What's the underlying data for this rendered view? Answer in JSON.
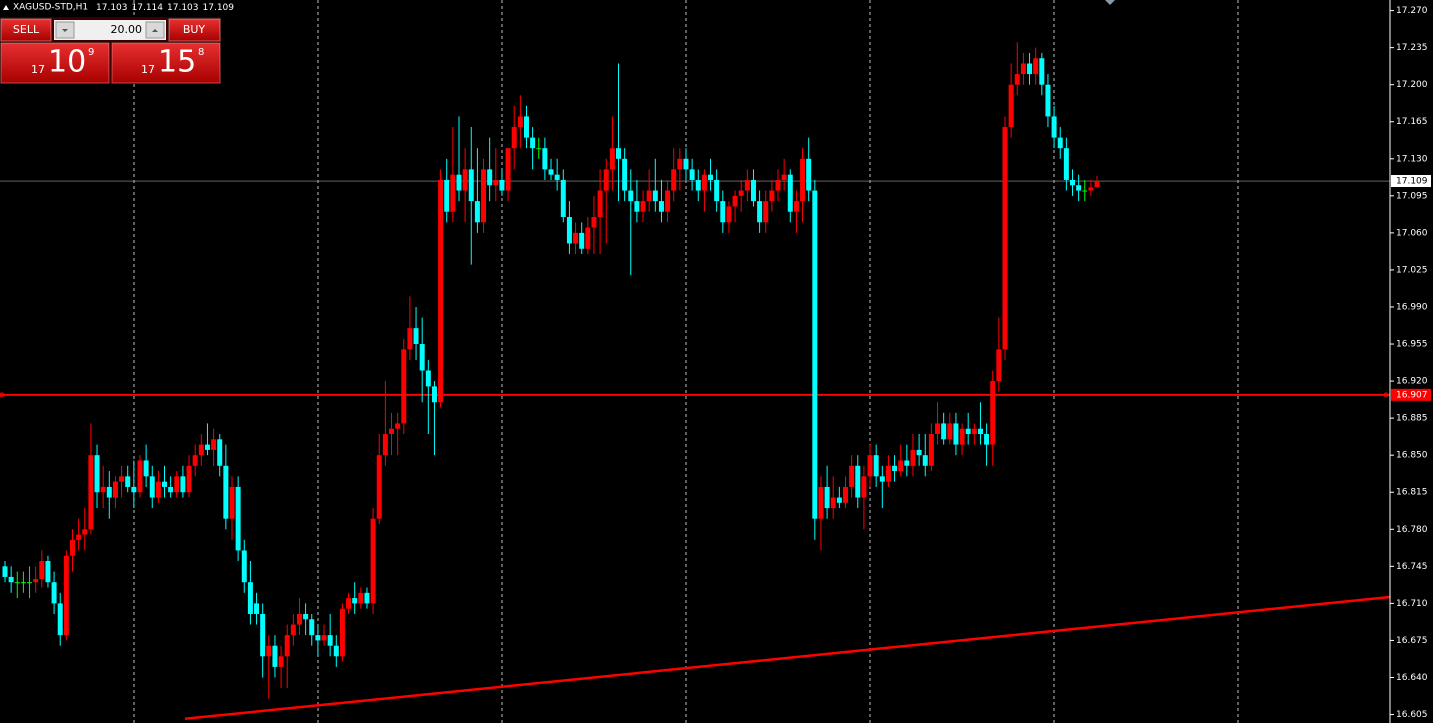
{
  "header": {
    "symbol": "XAGUSD-STD,H1"
  },
  "trade_panel": {
    "sell_label": "SELL",
    "buy_label": "BUY",
    "volume": "20.00",
    "sell_price": {
      "prefix": "17",
      "main": "10",
      "point": "9"
    },
    "buy_price": {
      "prefix": "17",
      "main": "15",
      "point": "8"
    }
  },
  "chart_data": {
    "type": "candlestick",
    "ylim": [
      16.597,
      17.28
    ],
    "yticks": [
      {
        "value": 17.27,
        "label": "17.270"
      },
      17.235,
      {
        "value": 17.2,
        "label": "17.200"
      },
      17.165,
      {
        "value": 17.13,
        "label": "17.130"
      },
      17.095,
      {
        "value": 17.06,
        "label": "17.060"
      },
      17.025,
      {
        "value": 16.99,
        "label": "16.990"
      },
      16.955,
      {
        "value": 16.92,
        "label": "16.920"
      },
      16.885,
      {
        "value": 16.85,
        "label": "16.850"
      },
      16.815,
      {
        "value": 16.78,
        "label": "16.780"
      },
      16.745,
      {
        "value": 16.71,
        "label": "16.710"
      },
      16.675,
      {
        "value": 16.64,
        "label": "16.640"
      },
      16.605
    ],
    "up_color": "#ff0000",
    "down_color": "#00ffff",
    "flat_color": "#00ff00",
    "bid": 17.109,
    "level": 16.907,
    "trendline": {
      "start": 16.601,
      "end": 16.716,
      "color": "#ff0000"
    },
    "ohlc": [
      [
        16.745,
        16.75,
        16.73,
        16.735
      ],
      [
        16.735,
        16.745,
        16.72,
        16.73
      ],
      [
        16.73,
        16.74,
        16.715,
        16.73
      ],
      [
        16.73,
        16.74,
        16.72,
        16.73
      ],
      [
        16.73,
        16.745,
        16.715,
        16.73
      ],
      [
        16.73,
        16.745,
        16.72,
        16.733
      ],
      [
        16.733,
        16.76,
        16.725,
        16.75
      ],
      [
        16.75,
        16.755,
        16.725,
        16.73
      ],
      [
        16.73,
        16.74,
        16.7,
        16.71
      ],
      [
        16.71,
        16.72,
        16.67,
        16.68
      ],
      [
        16.68,
        16.76,
        16.675,
        16.755
      ],
      [
        16.755,
        16.78,
        16.74,
        16.77
      ],
      [
        16.77,
        16.79,
        16.76,
        16.775
      ],
      [
        16.775,
        16.8,
        16.76,
        16.78
      ],
      [
        16.78,
        16.88,
        16.775,
        16.85
      ],
      [
        16.85,
        16.86,
        16.8,
        16.815
      ],
      [
        16.815,
        16.84,
        16.8,
        16.82
      ],
      [
        16.82,
        16.835,
        16.79,
        16.81
      ],
      [
        16.81,
        16.83,
        16.8,
        16.825
      ],
      [
        16.825,
        16.84,
        16.81,
        16.83
      ],
      [
        16.83,
        16.84,
        16.815,
        16.82
      ],
      [
        16.82,
        16.845,
        16.8,
        16.815
      ],
      [
        16.815,
        16.85,
        16.81,
        16.845
      ],
      [
        16.845,
        16.86,
        16.82,
        16.83
      ],
      [
        16.83,
        16.84,
        16.8,
        16.81
      ],
      [
        16.81,
        16.835,
        16.805,
        16.825
      ],
      [
        16.825,
        16.84,
        16.81,
        16.82
      ],
      [
        16.82,
        16.83,
        16.81,
        16.815
      ],
      [
        16.815,
        16.835,
        16.81,
        16.83
      ],
      [
        16.83,
        16.84,
        16.81,
        16.815
      ],
      [
        16.815,
        16.85,
        16.81,
        16.84
      ],
      [
        16.84,
        16.86,
        16.83,
        16.85
      ],
      [
        16.85,
        16.87,
        16.84,
        16.86
      ],
      [
        16.86,
        16.88,
        16.85,
        16.855
      ],
      [
        16.855,
        16.875,
        16.84,
        16.865
      ],
      [
        16.865,
        16.87,
        16.83,
        16.84
      ],
      [
        16.84,
        16.86,
        16.78,
        16.79
      ],
      [
        16.79,
        16.83,
        16.77,
        16.82
      ],
      [
        16.82,
        16.83,
        16.75,
        16.76
      ],
      [
        16.76,
        16.77,
        16.72,
        16.73
      ],
      [
        16.73,
        16.75,
        16.69,
        16.7
      ],
      [
        16.71,
        16.72,
        16.69,
        16.7
      ],
      [
        16.7,
        16.71,
        16.64,
        16.66
      ],
      [
        16.66,
        16.68,
        16.62,
        16.67
      ],
      [
        16.67,
        16.68,
        16.64,
        16.65
      ],
      [
        16.65,
        16.67,
        16.63,
        16.66
      ],
      [
        16.66,
        16.69,
        16.63,
        16.68
      ],
      [
        16.68,
        16.7,
        16.67,
        16.69
      ],
      [
        16.69,
        16.715,
        16.68,
        16.7
      ],
      [
        16.7,
        16.71,
        16.68,
        16.695
      ],
      [
        16.695,
        16.7,
        16.67,
        16.68
      ],
      [
        16.68,
        16.69,
        16.66,
        16.675
      ],
      [
        16.675,
        16.69,
        16.67,
        16.68
      ],
      [
        16.68,
        16.7,
        16.66,
        16.67
      ],
      [
        16.67,
        16.68,
        16.65,
        16.66
      ],
      [
        16.66,
        16.71,
        16.655,
        16.705
      ],
      [
        16.705,
        16.72,
        16.7,
        16.715
      ],
      [
        16.715,
        16.73,
        16.7,
        16.71
      ],
      [
        16.71,
        16.725,
        16.705,
        16.72
      ],
      [
        16.72,
        16.725,
        16.705,
        16.71
      ],
      [
        16.71,
        16.8,
        16.7,
        16.79
      ],
      [
        16.79,
        16.87,
        16.785,
        16.85
      ],
      [
        16.85,
        16.92,
        16.84,
        16.87
      ],
      [
        16.87,
        16.89,
        16.85,
        16.875
      ],
      [
        16.875,
        16.89,
        16.85,
        16.88
      ],
      [
        16.88,
        16.96,
        16.87,
        16.95
      ],
      [
        16.95,
        17.0,
        16.94,
        16.97
      ],
      [
        16.97,
        16.99,
        16.94,
        16.955
      ],
      [
        16.955,
        16.98,
        16.9,
        16.93
      ],
      [
        16.93,
        16.94,
        16.87,
        16.915
      ],
      [
        16.915,
        16.92,
        16.85,
        16.9
      ],
      [
        16.9,
        17.12,
        16.895,
        17.11
      ],
      [
        17.11,
        17.13,
        17.07,
        17.08
      ],
      [
        17.08,
        17.16,
        17.07,
        17.115
      ],
      [
        17.115,
        17.17,
        17.09,
        17.1
      ],
      [
        17.1,
        17.14,
        17.07,
        17.12
      ],
      [
        17.12,
        17.16,
        17.03,
        17.09
      ],
      [
        17.09,
        17.14,
        17.06,
        17.07
      ],
      [
        17.07,
        17.13,
        17.06,
        17.12
      ],
      [
        17.12,
        17.15,
        17.09,
        17.105
      ],
      [
        17.105,
        17.14,
        17.09,
        17.11
      ],
      [
        17.11,
        17.12,
        17.095,
        17.1
      ],
      [
        17.1,
        17.14,
        17.09,
        17.14
      ],
      [
        17.14,
        17.18,
        17.12,
        17.16
      ],
      [
        17.16,
        17.19,
        17.14,
        17.17
      ],
      [
        17.17,
        17.18,
        17.14,
        17.15
      ],
      [
        17.15,
        17.16,
        17.12,
        17.14
      ],
      [
        17.14,
        17.15,
        17.13,
        17.14
      ],
      [
        17.14,
        17.15,
        17.11,
        17.12
      ],
      [
        17.12,
        17.13,
        17.11,
        17.115
      ],
      [
        17.115,
        17.13,
        17.1,
        17.11
      ],
      [
        17.11,
        17.12,
        17.07,
        17.075
      ],
      [
        17.075,
        17.09,
        17.04,
        17.05
      ],
      [
        17.05,
        17.07,
        17.04,
        17.06
      ],
      [
        17.06,
        17.07,
        17.04,
        17.045
      ],
      [
        17.045,
        17.075,
        17.04,
        17.065
      ],
      [
        17.065,
        17.095,
        17.04,
        17.075
      ],
      [
        17.075,
        17.12,
        17.04,
        17.1
      ],
      [
        17.1,
        17.13,
        17.05,
        17.12
      ],
      [
        17.12,
        17.17,
        17.1,
        17.14
      ],
      [
        17.14,
        17.22,
        17.09,
        17.13
      ],
      [
        17.13,
        17.14,
        17.09,
        17.1
      ],
      [
        17.1,
        17.12,
        17.02,
        17.09
      ],
      [
        17.09,
        17.11,
        17.07,
        17.08
      ],
      [
        17.08,
        17.1,
        17.07,
        17.09
      ],
      [
        17.09,
        17.12,
        17.08,
        17.1
      ],
      [
        17.1,
        17.13,
        17.08,
        17.09
      ],
      [
        17.09,
        17.11,
        17.07,
        17.08
      ],
      [
        17.08,
        17.11,
        17.07,
        17.1
      ],
      [
        17.1,
        17.14,
        17.09,
        17.12
      ],
      [
        17.12,
        17.14,
        17.1,
        17.13
      ],
      [
        17.13,
        17.14,
        17.11,
        17.12
      ],
      [
        17.12,
        17.13,
        17.1,
        17.11
      ],
      [
        17.11,
        17.12,
        17.09,
        17.1
      ],
      [
        17.1,
        17.12,
        17.08,
        17.115
      ],
      [
        17.115,
        17.13,
        17.1,
        17.11
      ],
      [
        17.11,
        17.12,
        17.08,
        17.09
      ],
      [
        17.09,
        17.1,
        17.06,
        17.07
      ],
      [
        17.07,
        17.09,
        17.06,
        17.085
      ],
      [
        17.085,
        17.1,
        17.07,
        17.095
      ],
      [
        17.095,
        17.11,
        17.08,
        17.1
      ],
      [
        17.1,
        17.12,
        17.09,
        17.11
      ],
      [
        17.11,
        17.12,
        17.085,
        17.09
      ],
      [
        17.09,
        17.1,
        17.06,
        17.07
      ],
      [
        17.07,
        17.1,
        17.06,
        17.09
      ],
      [
        17.09,
        17.11,
        17.08,
        17.1
      ],
      [
        17.1,
        17.12,
        17.09,
        17.11
      ],
      [
        17.11,
        17.13,
        17.1,
        17.115
      ],
      [
        17.115,
        17.12,
        17.07,
        17.08
      ],
      [
        17.08,
        17.1,
        17.06,
        17.09
      ],
      [
        17.09,
        17.14,
        17.07,
        17.13
      ],
      [
        17.13,
        17.15,
        17.09,
        17.1
      ],
      [
        17.1,
        17.11,
        16.77,
        16.79
      ],
      [
        16.79,
        16.83,
        16.76,
        16.82
      ],
      [
        16.82,
        16.84,
        16.79,
        16.8
      ],
      [
        16.8,
        16.83,
        16.79,
        16.81
      ],
      [
        16.81,
        16.82,
        16.8,
        16.805
      ],
      [
        16.805,
        16.83,
        16.8,
        16.82
      ],
      [
        16.82,
        16.85,
        16.81,
        16.84
      ],
      [
        16.84,
        16.85,
        16.8,
        16.81
      ],
      [
        16.81,
        16.84,
        16.78,
        16.83
      ],
      [
        16.83,
        16.86,
        16.82,
        16.85
      ],
      [
        16.85,
        16.86,
        16.82,
        16.83
      ],
      [
        16.83,
        16.84,
        16.8,
        16.825
      ],
      [
        16.825,
        16.85,
        16.82,
        16.84
      ],
      [
        16.84,
        16.85,
        16.825,
        16.835
      ],
      [
        16.835,
        16.86,
        16.83,
        16.845
      ],
      [
        16.845,
        16.86,
        16.83,
        16.84
      ],
      [
        16.84,
        16.87,
        16.83,
        16.855
      ],
      [
        16.855,
        16.87,
        16.84,
        16.85
      ],
      [
        16.85,
        16.87,
        16.83,
        16.84
      ],
      [
        16.84,
        16.88,
        16.835,
        16.87
      ],
      [
        16.87,
        16.9,
        16.86,
        16.88
      ],
      [
        16.88,
        16.89,
        16.86,
        16.865
      ],
      [
        16.865,
        16.89,
        16.86,
        16.88
      ],
      [
        16.88,
        16.89,
        16.85,
        16.86
      ],
      [
        16.86,
        16.88,
        16.85,
        16.875
      ],
      [
        16.875,
        16.89,
        16.86,
        16.87
      ],
      [
        16.87,
        16.88,
        16.86,
        16.875
      ],
      [
        16.875,
        16.9,
        16.86,
        16.87
      ],
      [
        16.87,
        16.88,
        16.84,
        16.86
      ],
      [
        16.86,
        16.93,
        16.84,
        16.92
      ],
      [
        16.92,
        16.98,
        16.91,
        16.95
      ],
      [
        16.95,
        17.17,
        16.94,
        17.16
      ],
      [
        17.16,
        17.22,
        17.15,
        17.2
      ],
      [
        17.2,
        17.24,
        17.19,
        17.21
      ],
      [
        17.21,
        17.23,
        17.2,
        17.22
      ],
      [
        17.22,
        17.23,
        17.2,
        17.21
      ],
      [
        17.21,
        17.235,
        17.2,
        17.225
      ],
      [
        17.225,
        17.23,
        17.19,
        17.2
      ],
      [
        17.2,
        17.21,
        17.16,
        17.17
      ],
      [
        17.17,
        17.18,
        17.14,
        17.15
      ],
      [
        17.15,
        17.16,
        17.13,
        17.14
      ],
      [
        17.14,
        17.15,
        17.1,
        17.11
      ],
      [
        17.11,
        17.12,
        17.095,
        17.105
      ],
      [
        17.105,
        17.115,
        17.09,
        17.1
      ],
      [
        17.1,
        17.11,
        17.09,
        17.1
      ],
      [
        17.1,
        17.11,
        17.095,
        17.103
      ],
      [
        17.103,
        17.114,
        17.103,
        17.109
      ]
    ]
  }
}
